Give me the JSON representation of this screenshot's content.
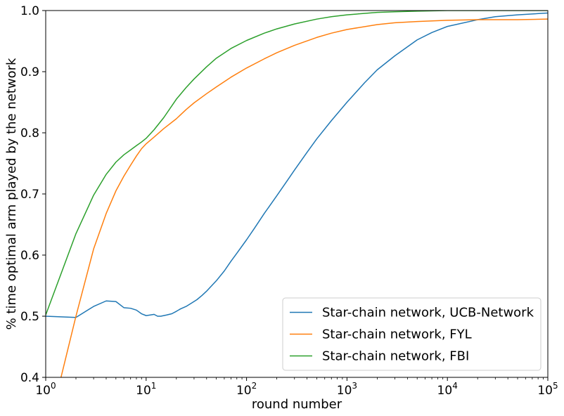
{
  "chart_data": {
    "type": "line",
    "title": "",
    "xlabel": "round number",
    "ylabel": "% time optimal arm played by the network",
    "xscale": "log",
    "xlim": [
      1,
      100000
    ],
    "ylim": [
      0.4,
      1.0
    ],
    "x_ticks": [
      {
        "value": 1,
        "base": "10",
        "exp": "0"
      },
      {
        "value": 10,
        "base": "10",
        "exp": "1"
      },
      {
        "value": 100,
        "base": "10",
        "exp": "2"
      },
      {
        "value": 1000,
        "base": "10",
        "exp": "3"
      },
      {
        "value": 10000,
        "base": "10",
        "exp": "4"
      },
      {
        "value": 100000,
        "base": "10",
        "exp": "5"
      }
    ],
    "y_ticks": [
      {
        "value": 0.4,
        "label": "0.4"
      },
      {
        "value": 0.5,
        "label": "0.5"
      },
      {
        "value": 0.6,
        "label": "0.6"
      },
      {
        "value": 0.7,
        "label": "0.7"
      },
      {
        "value": 0.8,
        "label": "0.8"
      },
      {
        "value": 0.9,
        "label": "0.9"
      },
      {
        "value": 1.0,
        "label": "1.0"
      }
    ],
    "grid": false,
    "legend_position": "lower-right",
    "series": [
      {
        "name": "Star-chain network, UCB-Network",
        "color": "#1f77b4",
        "x": [
          1,
          2,
          3,
          4,
          5,
          6,
          7,
          8,
          9,
          10,
          11,
          12,
          13,
          14,
          16,
          18,
          20,
          22,
          25,
          28,
          32,
          36,
          40,
          45,
          50,
          60,
          70,
          80,
          100,
          120,
          150,
          200,
          250,
          300,
          400,
          500,
          700,
          1000,
          1500,
          2000,
          3000,
          5000,
          7000,
          10000,
          20000,
          30000,
          50000,
          100000
        ],
        "y": [
          0.5,
          0.498,
          0.516,
          0.525,
          0.524,
          0.514,
          0.513,
          0.51,
          0.504,
          0.501,
          0.502,
          0.503,
          0.5,
          0.5,
          0.502,
          0.504,
          0.508,
          0.512,
          0.516,
          0.521,
          0.527,
          0.534,
          0.541,
          0.55,
          0.558,
          0.574,
          0.59,
          0.603,
          0.625,
          0.644,
          0.668,
          0.697,
          0.72,
          0.739,
          0.768,
          0.79,
          0.82,
          0.85,
          0.882,
          0.903,
          0.926,
          0.952,
          0.964,
          0.974,
          0.985,
          0.99,
          0.993,
          0.996
        ]
      },
      {
        "name": "Star-chain network, FYL",
        "color": "#ff7f0e",
        "x": [
          1.42,
          2,
          3,
          4,
          5,
          6,
          7,
          8,
          9,
          10,
          12,
          15,
          20,
          25,
          30,
          40,
          50,
          70,
          100,
          150,
          200,
          300,
          500,
          700,
          1000,
          2000,
          3000,
          5000,
          10000,
          20000,
          50000,
          100000
        ],
        "y": [
          0.4,
          0.5,
          0.61,
          0.668,
          0.705,
          0.729,
          0.747,
          0.762,
          0.774,
          0.782,
          0.793,
          0.807,
          0.823,
          0.838,
          0.849,
          0.864,
          0.875,
          0.891,
          0.906,
          0.921,
          0.931,
          0.943,
          0.956,
          0.963,
          0.969,
          0.977,
          0.98,
          0.982,
          0.984,
          0.985,
          0.985,
          0.986
        ]
      },
      {
        "name": "Star-chain network, FBI",
        "color": "#2ca02c",
        "x": [
          1,
          2,
          3,
          4,
          5,
          6,
          7,
          8,
          9,
          10,
          12,
          15,
          20,
          25,
          30,
          40,
          50,
          70,
          100,
          150,
          200,
          300,
          500,
          700,
          1000,
          2000,
          3000,
          5000,
          10000,
          20000,
          50000,
          100000
        ],
        "y": [
          0.502,
          0.635,
          0.698,
          0.732,
          0.752,
          0.764,
          0.772,
          0.779,
          0.785,
          0.791,
          0.805,
          0.825,
          0.855,
          0.874,
          0.888,
          0.908,
          0.922,
          0.938,
          0.951,
          0.963,
          0.97,
          0.978,
          0.986,
          0.99,
          0.993,
          0.997,
          0.998,
          0.999,
          1.0,
          1.0,
          1.0,
          1.0
        ]
      }
    ]
  }
}
